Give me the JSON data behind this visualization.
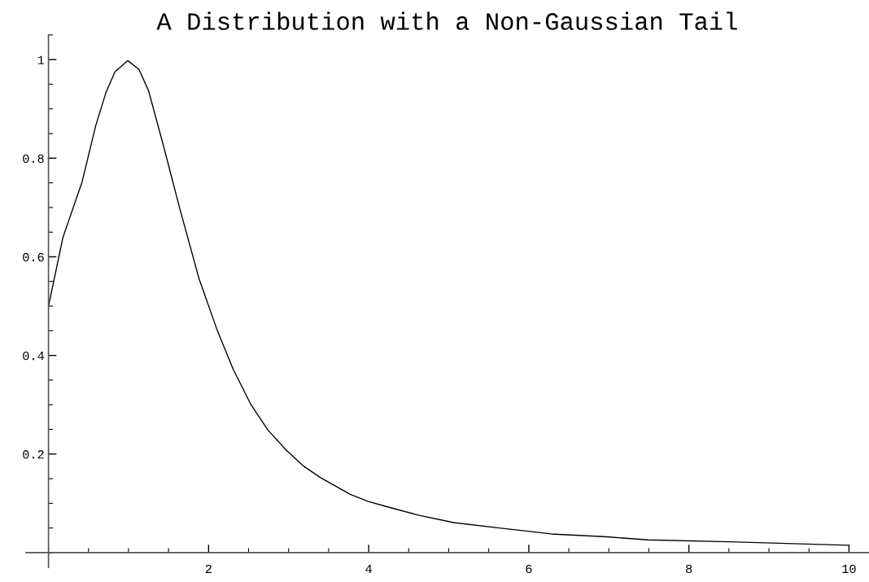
{
  "chart_data": {
    "type": "line",
    "title": "A Distribution with a Non-Gaussian Tail",
    "x": [
      0,
      0.18,
      0.42,
      0.59,
      0.72,
      0.83,
      0.99,
      1.13,
      1.25,
      1.43,
      1.64,
      1.88,
      2.11,
      2.31,
      2.53,
      2.74,
      2.97,
      3.19,
      3.4,
      3.77,
      3.99,
      4.21,
      4.62,
      5.06,
      5.63,
      6.28,
      6.98,
      7.49,
      8.51,
      10
    ],
    "series": [
      {
        "color": "#000000",
        "values": [
          0.5,
          0.639,
          0.752,
          0.866,
          0.934,
          0.975,
          0.998,
          0.98,
          0.937,
          0.829,
          0.698,
          0.556,
          0.45,
          0.371,
          0.3,
          0.249,
          0.208,
          0.175,
          0.152,
          0.118,
          0.104,
          0.094,
          0.076,
          0.061,
          0.05,
          0.038,
          0.032,
          0.026,
          0.022,
          0.015
        ]
      }
    ],
    "xlim": [
      -0.28,
      10.25
    ],
    "ylim": [
      -0.03,
      1.05
    ],
    "xticks": [
      2,
      4,
      6,
      8,
      10
    ],
    "yticks": [
      0.2,
      0.4,
      0.6,
      0.8,
      1
    ]
  }
}
